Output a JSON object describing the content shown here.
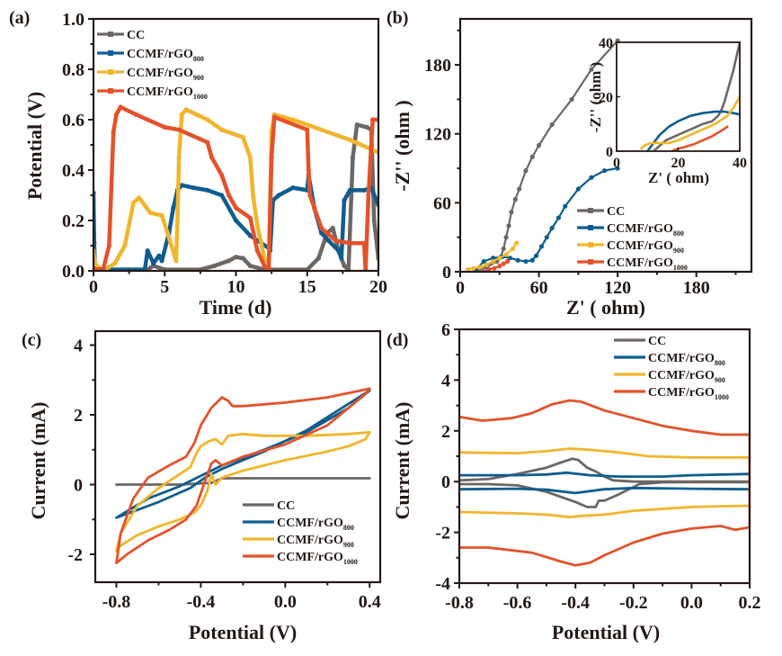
{
  "colors": {
    "CC": "#6d6764",
    "CCMF/rGO800": "#0f5d8f",
    "CCMF/rGO900": "#f1b52d",
    "CCMF/rGO1000": "#e3522b",
    "axis": "#231815"
  },
  "legend_entries": [
    {
      "key": "CC",
      "base": "CC",
      "sub": ""
    },
    {
      "key": "CCMF/rGO800",
      "base": "CCMF/rGO",
      "sub": "800"
    },
    {
      "key": "CCMF/rGO900",
      "base": "CCMF/rGO",
      "sub": "900"
    },
    {
      "key": "CCMF/rGO1000",
      "base": "CCMF/rGO",
      "sub": "1000"
    }
  ],
  "chart_data": [
    {
      "panel": "(a)",
      "type": "line",
      "xlabel": "Time (d)",
      "ylabel": "Potential (V)",
      "xlim": [
        0,
        20
      ],
      "ylim": [
        0,
        1.0
      ],
      "xticks": [
        0,
        5,
        10,
        15,
        20
      ],
      "yticks": [
        0.0,
        0.2,
        0.4,
        0.6,
        0.8,
        1.0
      ],
      "ytick_labels": [
        "0.0",
        "0.2",
        "0.4",
        "0.6",
        "0.8",
        "1.0"
      ],
      "legend_position": "top-left",
      "markers": true,
      "series": [
        {
          "name": "CC",
          "x": [
            0,
            3.8,
            4.2,
            5,
            7.5,
            8.5,
            9.5,
            10,
            10.5,
            11,
            12,
            15,
            15.8,
            16.4,
            16.8,
            17.2,
            17.6,
            17.9,
            18.2,
            18.5,
            19.2,
            19.5,
            19.7,
            20
          ],
          "y": [
            0.005,
            0.005,
            0.02,
            0.005,
            0.005,
            0.02,
            0.04,
            0.055,
            0.05,
            0.02,
            0.005,
            0.005,
            0.05,
            0.15,
            0.17,
            0.08,
            0.02,
            0.005,
            0.45,
            0.58,
            0.57,
            0.56,
            0.2,
            0.05
          ]
        },
        {
          "name": "CCMF/rGO800",
          "x": [
            0,
            0.05,
            0.1,
            0.3,
            3.6,
            3.8,
            4.2,
            4.6,
            4.8,
            5.3,
            5.6,
            5.9,
            6.2,
            7,
            8,
            9,
            10,
            11,
            12.3,
            12.4,
            12.6,
            13,
            14,
            15,
            15.1,
            15.5,
            16,
            16.5,
            17.2,
            17.4,
            17.6,
            18,
            19,
            19.5,
            20
          ],
          "y": [
            0.31,
            0.11,
            0.02,
            0.005,
            0.005,
            0.08,
            0.03,
            0.06,
            0.04,
            0.15,
            0.25,
            0.32,
            0.34,
            0.33,
            0.32,
            0.3,
            0.2,
            0.14,
            0.09,
            0.08,
            0.28,
            0.3,
            0.33,
            0.32,
            0.38,
            0.25,
            0.15,
            0.12,
            0.08,
            0.05,
            0.28,
            0.32,
            0.32,
            0.33,
            0.26
          ]
        },
        {
          "name": "CCMF/rGO900",
          "x": [
            0,
            0.1,
            0.4,
            0.8,
            1.5,
            2.2,
            2.8,
            3.2,
            3.6,
            4,
            4.8,
            5.2,
            5.8,
            5.9,
            6,
            6.2,
            6.5,
            8,
            9,
            10.5,
            11,
            11.2,
            11.5,
            12,
            12.3,
            12.5,
            12.7,
            14,
            16,
            18,
            20
          ],
          "y": [
            0.08,
            0.03,
            0.01,
            0.005,
            0.03,
            0.1,
            0.27,
            0.29,
            0.26,
            0.23,
            0.22,
            0.15,
            0.04,
            0.2,
            0.45,
            0.62,
            0.64,
            0.6,
            0.56,
            0.53,
            0.45,
            0.3,
            0.18,
            0.05,
            0.03,
            0.55,
            0.62,
            0.6,
            0.56,
            0.52,
            0.47
          ]
        },
        {
          "name": "CCMF/rGO1000",
          "x": [
            0,
            0.3,
            0.7,
            1.1,
            1.4,
            1.6,
            1.9,
            3,
            5,
            6,
            8,
            8.3,
            9,
            9.5,
            10,
            11,
            11.5,
            12,
            12.3,
            12.5,
            12.7,
            15,
            15.1,
            15.2,
            15.5,
            16,
            17,
            18,
            19,
            19.1,
            19.3,
            19.6,
            20
          ],
          "y": [
            0.01,
            0.005,
            0.01,
            0.1,
            0.55,
            0.62,
            0.65,
            0.62,
            0.57,
            0.56,
            0.51,
            0.45,
            0.38,
            0.3,
            0.25,
            0.21,
            0.08,
            0.02,
            0.005,
            0.45,
            0.61,
            0.56,
            0.4,
            0.3,
            0.25,
            0.17,
            0.12,
            0.11,
            0.11,
            0.005,
            0.3,
            0.6,
            0.6
          ]
        }
      ]
    },
    {
      "panel": "(b)",
      "type": "line",
      "xlabel": "Z' ( ohm)",
      "ylabel": "-Z'' (ohm )",
      "xlim": [
        0,
        222
      ],
      "ylim": [
        0,
        220
      ],
      "xticks": [
        0,
        60,
        120,
        180
      ],
      "yticks": [
        0,
        60,
        120,
        180
      ],
      "legend_position": "bottom-right",
      "markers": true,
      "series": [
        {
          "name": "CC",
          "x": [
            12,
            20,
            28,
            31,
            33,
            35,
            37,
            39,
            42,
            45,
            50,
            55,
            60,
            70,
            85,
            100,
            120
          ],
          "y": [
            0,
            4,
            9,
            13,
            20,
            30,
            40,
            52,
            63,
            72,
            88,
            100,
            110,
            128,
            150,
            176,
            201
          ]
        },
        {
          "name": "CCMF/rGO800",
          "x": [
            12,
            18,
            25,
            32,
            38,
            44,
            50,
            55,
            58,
            62,
            66,
            70,
            75,
            80,
            90,
            100,
            110,
            120
          ],
          "y": [
            2,
            9,
            12,
            13,
            12,
            10,
            9,
            10,
            14,
            22,
            30,
            38,
            47,
            57,
            72,
            82,
            88,
            90
          ]
        },
        {
          "name": "CCMF/rGO900",
          "x": [
            6,
            10,
            15,
            20,
            25,
            30,
            35,
            40,
            43
          ],
          "y": [
            2,
            3,
            4,
            6,
            9,
            12,
            15,
            20,
            25
          ]
        },
        {
          "name": "CCMF/rGO1000",
          "x": [
            18,
            22,
            26,
            30,
            33,
            36
          ],
          "y": [
            0,
            2,
            3,
            5,
            7,
            9
          ]
        }
      ],
      "inset": {
        "xlabel": "Z' ( ohm)",
        "ylabel": "-Z'' (ohm )",
        "xlim": [
          0,
          40
        ],
        "ylim": [
          0,
          40
        ],
        "xticks": [
          0,
          20,
          40
        ],
        "yticks": [
          0,
          20,
          40
        ],
        "series": [
          {
            "name": "CC",
            "x": [
              12,
              14,
              16,
              20,
              24,
              28,
              31,
              33,
              34,
              35,
              36,
              37,
              38,
              39,
              40
            ],
            "y": [
              0,
              2,
              4,
              6,
              8,
              10,
              11,
              13,
              15,
              18,
              22,
              26,
              30,
              35,
              40
            ]
          },
          {
            "name": "CCMF/rGO800",
            "x": [
              10,
              12,
              14,
              17,
              20,
              24,
              28,
              32,
              35,
              38,
              40
            ],
            "y": [
              0,
              3,
              6,
              9,
              11,
              13,
              14,
              14.5,
              14.5,
              14,
              13.5
            ]
          },
          {
            "name": "CCMF/rGO900",
            "x": [
              8,
              9,
              11,
              14,
              17,
              20,
              24,
              28,
              32,
              36,
              38,
              40
            ],
            "y": [
              1,
              2,
              3,
              3,
              3,
              4,
              6,
              8,
              10,
              13,
              16,
              20
            ]
          },
          {
            "name": "CCMF/rGO1000",
            "x": [
              18,
              20,
              22,
              25,
              28,
              31,
              34,
              36
            ],
            "y": [
              0,
              1,
              1.5,
              2.5,
              4,
              5.5,
              7.5,
              9
            ]
          }
        ]
      }
    },
    {
      "panel": "(c)",
      "type": "line",
      "xlabel": "Potential (V)",
      "ylabel": "Current (mA)",
      "xlim": [
        -0.9,
        0.45
      ],
      "ylim": [
        -2.8,
        4.4
      ],
      "xticks": [
        -0.8,
        -0.4,
        0.0,
        0.4
      ],
      "xtick_labels": [
        "-0.8",
        "-0.4",
        "0.0",
        "0.4"
      ],
      "yticks": [
        -2,
        0,
        2,
        4
      ],
      "legend_position": "bottom-right",
      "markers": false,
      "series": [
        {
          "name": "CC",
          "x": [
            -0.8,
            -0.5,
            -0.35,
            -0.3,
            0.0,
            0.4
          ],
          "y": [
            0.0,
            0.0,
            0.05,
            0.18,
            0.18,
            0.18
          ]
        },
        {
          "name": "CCMF/rGO800",
          "x": [
            -0.8,
            -0.6,
            -0.45,
            -0.38,
            -0.3,
            -0.1,
            0.1,
            0.4,
            0.3,
            0.1,
            -0.1,
            -0.3,
            -0.4,
            -0.5,
            -0.65,
            -0.8
          ],
          "y": [
            -0.95,
            -0.5,
            -0.1,
            0.2,
            0.45,
            0.95,
            1.55,
            2.7,
            2.2,
            1.5,
            1.0,
            0.55,
            0.25,
            -0.05,
            -0.4,
            -0.95
          ]
        },
        {
          "name": "CCMF/rGO900",
          "x": [
            -0.8,
            -0.78,
            -0.7,
            -0.6,
            -0.5,
            -0.45,
            -0.42,
            -0.4,
            -0.36,
            -0.33,
            -0.3,
            -0.27,
            -0.2,
            -0.1,
            0.1,
            0.3,
            0.4,
            0.38,
            0.3,
            0.2,
            0.0,
            -0.2,
            -0.3,
            -0.33,
            -0.35,
            -0.37,
            -0.4,
            -0.43,
            -0.5,
            -0.6,
            -0.7,
            -0.78,
            -0.8
          ],
          "y": [
            -1.9,
            -1.4,
            -0.6,
            -0.1,
            0.3,
            0.5,
            0.9,
            1.1,
            1.25,
            1.3,
            1.15,
            1.4,
            1.45,
            1.4,
            1.4,
            1.45,
            1.5,
            1.3,
            1.1,
            0.95,
            0.7,
            0.4,
            0.2,
            0.0,
            0.3,
            -0.2,
            -0.6,
            -0.8,
            -1.0,
            -1.2,
            -1.45,
            -1.75,
            -1.9
          ]
        },
        {
          "name": "CCMF/rGO1000",
          "x": [
            -0.8,
            -0.78,
            -0.72,
            -0.65,
            -0.55,
            -0.47,
            -0.43,
            -0.4,
            -0.35,
            -0.3,
            -0.27,
            -0.25,
            -0.2,
            0.0,
            0.2,
            0.4,
            0.38,
            0.2,
            0.0,
            -0.2,
            -0.3,
            -0.33,
            -0.35,
            -0.38,
            -0.42,
            -0.47,
            -0.55,
            -0.65,
            -0.75,
            -0.8
          ],
          "y": [
            -2.25,
            -1.4,
            -0.4,
            0.2,
            0.55,
            0.8,
            1.2,
            1.7,
            2.2,
            2.5,
            2.4,
            2.25,
            2.25,
            2.35,
            2.5,
            2.75,
            2.6,
            1.7,
            1.15,
            0.8,
            0.55,
            0.7,
            0.6,
            0.1,
            -0.6,
            -1.0,
            -1.3,
            -1.6,
            -2.0,
            -2.25
          ]
        }
      ]
    },
    {
      "panel": "(d)",
      "type": "line",
      "xlabel": "Potential (V)",
      "ylabel": "Current (mA)",
      "xlim": [
        -0.8,
        0.2
      ],
      "ylim": [
        -4,
        6
      ],
      "xticks": [
        -0.8,
        -0.6,
        -0.4,
        -0.2,
        0.0,
        0.2
      ],
      "xtick_labels": [
        "-0.8",
        "-0.6",
        "-0.4",
        "-0.2",
        "0.0",
        "0.2"
      ],
      "yticks": [
        -4,
        -2,
        0,
        2,
        4,
        6
      ],
      "legend_position": "top-right",
      "markers": false,
      "series": [
        {
          "name": "CC",
          "x": [
            -0.8,
            -0.7,
            -0.6,
            -0.5,
            -0.45,
            -0.41,
            -0.39,
            -0.36,
            -0.33,
            -0.3,
            -0.27,
            -0.2,
            -0.1,
            0.0,
            0.2,
            0.2,
            0.0,
            -0.1,
            -0.18,
            -0.25,
            -0.3,
            -0.32,
            -0.33,
            -0.36,
            -0.4,
            -0.5,
            -0.6,
            -0.7,
            -0.8
          ],
          "y": [
            0.05,
            0.1,
            0.3,
            0.55,
            0.75,
            0.9,
            0.85,
            0.55,
            0.4,
            0.2,
            0.05,
            0.0,
            0.0,
            0.0,
            0.0,
            -0.02,
            -0.02,
            -0.03,
            -0.1,
            -0.5,
            -0.75,
            -0.75,
            -1.0,
            -1.0,
            -0.8,
            -0.4,
            -0.15,
            -0.1,
            -0.1
          ]
        },
        {
          "name": "CCMF/rGO800",
          "x": [
            -0.8,
            -0.6,
            -0.5,
            -0.43,
            -0.35,
            -0.25,
            -0.1,
            0.0,
            0.2,
            0.2,
            0.0,
            -0.2,
            -0.3,
            -0.4,
            -0.5,
            -0.6,
            -0.8
          ],
          "y": [
            0.25,
            0.25,
            0.28,
            0.35,
            0.25,
            0.2,
            0.2,
            0.25,
            0.3,
            -0.3,
            -0.28,
            -0.25,
            -0.3,
            -0.45,
            -0.32,
            -0.28,
            -0.3
          ]
        },
        {
          "name": "CCMF/rGO900",
          "x": [
            -0.8,
            -0.6,
            -0.5,
            -0.42,
            -0.35,
            -0.25,
            -0.15,
            0.0,
            0.2,
            0.2,
            0.0,
            -0.2,
            -0.3,
            -0.38,
            -0.42,
            -0.5,
            -0.6,
            -0.8
          ],
          "y": [
            1.15,
            1.12,
            1.2,
            1.3,
            1.25,
            1.15,
            1.0,
            0.95,
            0.95,
            -0.95,
            -1.0,
            -1.15,
            -1.3,
            -1.35,
            -1.4,
            -1.3,
            -1.25,
            -1.2
          ]
        },
        {
          "name": "CCMF/rGO1000",
          "x": [
            -0.8,
            -0.72,
            -0.62,
            -0.55,
            -0.48,
            -0.42,
            -0.38,
            -0.3,
            -0.2,
            -0.1,
            0.0,
            0.1,
            0.2,
            0.2,
            0.15,
            0.1,
            0.0,
            -0.1,
            -0.2,
            -0.3,
            -0.35,
            -0.4,
            -0.45,
            -0.55,
            -0.7,
            -0.8
          ],
          "y": [
            2.55,
            2.4,
            2.5,
            2.7,
            3.05,
            3.2,
            3.15,
            2.8,
            2.5,
            2.2,
            2.0,
            1.85,
            1.85,
            -1.8,
            -1.9,
            -1.75,
            -1.85,
            -2.05,
            -2.4,
            -2.9,
            -3.2,
            -3.3,
            -3.15,
            -2.8,
            -2.6,
            -2.6
          ]
        }
      ]
    }
  ]
}
